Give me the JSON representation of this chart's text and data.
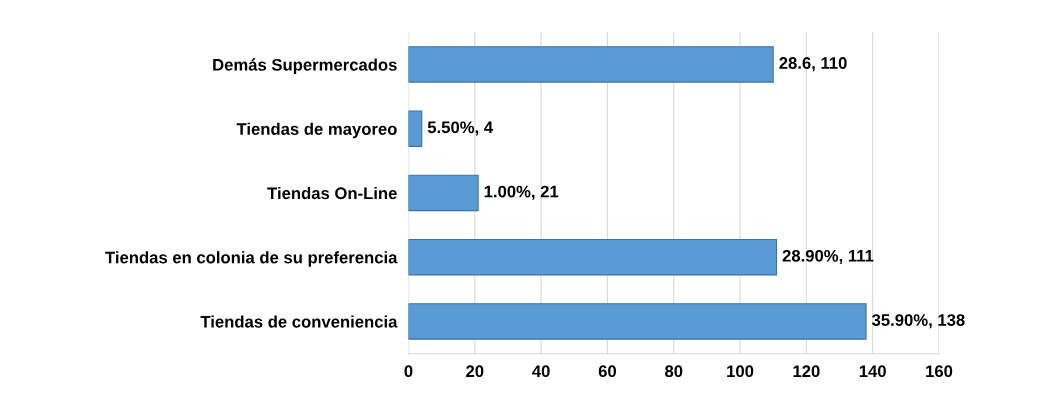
{
  "chart_data": {
    "type": "bar",
    "orientation": "horizontal",
    "categories": [
      "Demás Supermercados",
      "Tiendas de mayoreo",
      "Tiendas On-Line",
      "Tiendas en colonia de su preferencia",
      "Tiendas de conveniencia"
    ],
    "values": [
      110,
      4,
      21,
      111,
      138
    ],
    "value_labels": [
      "28.6, 110",
      "5.50%, 4",
      "1.00%, 21",
      "28.90%, 111",
      "35.90%, 138"
    ],
    "color": "#5b9bd5",
    "xlim": [
      0,
      160
    ],
    "xticks": [
      0,
      20,
      40,
      60,
      80,
      100,
      120,
      140,
      160
    ],
    "grid": "x"
  }
}
